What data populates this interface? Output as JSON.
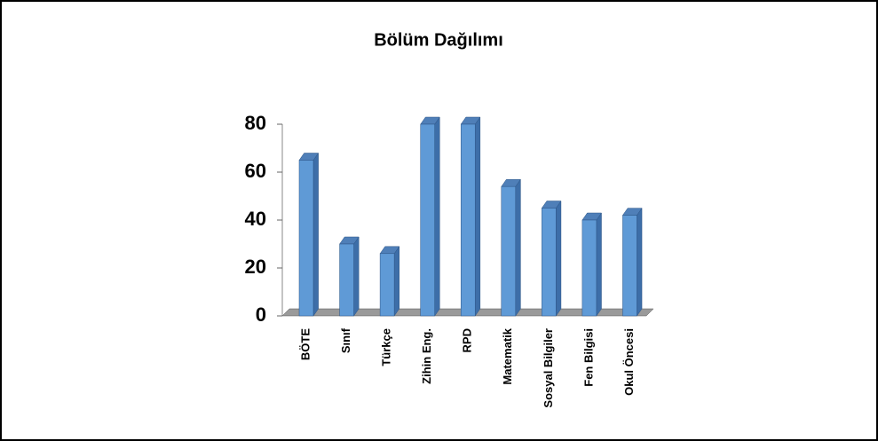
{
  "chart_data": {
    "type": "bar3d",
    "title": "Bölüm Dağılımı",
    "categories": [
      "BÖTE",
      "Sınıf",
      "Türkçe",
      "Zihin Eng.",
      "RPD",
      "Matematik",
      "Sosyal Bilgiler",
      "Fen Bilgisi",
      "Okul Öncesi"
    ],
    "values": [
      65,
      30,
      26,
      80,
      80,
      54,
      45,
      40,
      42
    ],
    "color": "#5f9ad6",
    "ylim": [
      0,
      80
    ],
    "yticks": [
      0,
      20,
      40,
      60,
      80
    ]
  }
}
